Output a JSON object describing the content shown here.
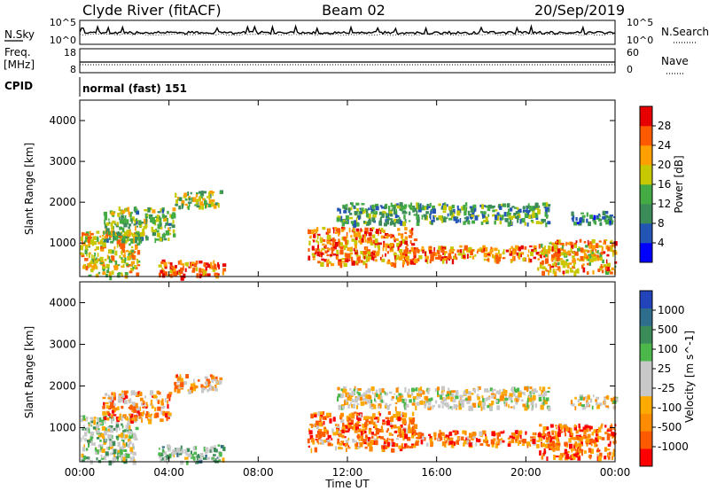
{
  "header": {
    "station": "Clyde River (fitACF)",
    "beam": "Beam 02",
    "date": "20/Sep/2019"
  },
  "panels": {
    "nsky": {
      "left_label": "N.Sky",
      "left_ticks": [
        "10^5",
        "10^0"
      ],
      "right_ticks": [
        "10^5",
        "10^0"
      ],
      "right_label": "N.Search"
    },
    "freq": {
      "left_label_1": "Freq.",
      "left_label_2": "[MHz]",
      "left_ticks": [
        "18",
        "8"
      ],
      "right_ticks": [
        "60",
        "0"
      ],
      "right_label": "Nave"
    },
    "cpid": {
      "label": "CPID",
      "text": "normal (fast) 151"
    }
  },
  "colors": {
    "power_scale": [
      "#0000ff",
      "#2255b4",
      "#3c8c5a",
      "#44aa44",
      "#c8c800",
      "#ffa000",
      "#ff5a00",
      "#e60000"
    ],
    "velocity_scale": [
      "#ff0000",
      "#ff5a00",
      "#ff8c00",
      "#ffaa00",
      "#c8c8c8",
      "#c8c8c8",
      "#4cb84c",
      "#3c8c5a",
      "#2e6e8c",
      "#2244bb"
    ]
  },
  "chart_data": [
    {
      "type": "heatmap",
      "title": "",
      "xlabel": "Time UT",
      "ylabel": "Slant Range [km]",
      "xlim": [
        "00:00",
        "24:00"
      ],
      "ylim": [
        180,
        4500
      ],
      "x_ticks": [
        "00:00",
        "04:00",
        "08:00",
        "12:00",
        "16:00",
        "20:00",
        "00:00"
      ],
      "y_ticks": [
        "1000",
        "2000",
        "3000",
        "4000"
      ],
      "colorbar": {
        "label": "Power [dB]",
        "ticks": [
          "4",
          "8",
          "12",
          "16",
          "20",
          "24",
          "28"
        ],
        "range": [
          0,
          32
        ]
      },
      "regions": [
        {
          "t0": 0.0,
          "t1": 2.6,
          "r0": 200,
          "r1": 1300,
          "level": 0.65
        },
        {
          "t0": 1.0,
          "t1": 4.2,
          "r0": 1100,
          "r1": 1900,
          "level": 0.45
        },
        {
          "t0": 3.5,
          "t1": 6.5,
          "r0": 200,
          "r1": 600,
          "level": 0.8
        },
        {
          "t0": 4.2,
          "t1": 6.3,
          "r0": 1900,
          "r1": 2300,
          "level": 0.5
        },
        {
          "t0": 10.2,
          "t1": 15.0,
          "r0": 500,
          "r1": 1400,
          "level": 0.8
        },
        {
          "t0": 11.5,
          "t1": 21.0,
          "r0": 1500,
          "r1": 2000,
          "level": 0.35
        },
        {
          "t0": 15.0,
          "t1": 21.5,
          "r0": 600,
          "r1": 950,
          "level": 0.75
        },
        {
          "t0": 20.5,
          "t1": 24.0,
          "r0": 300,
          "r1": 1100,
          "level": 0.7
        },
        {
          "t0": 22.0,
          "t1": 24.0,
          "r0": 1500,
          "r1": 1800,
          "level": 0.25
        }
      ]
    },
    {
      "type": "heatmap",
      "title": "",
      "xlabel": "Time UT",
      "ylabel": "Slant Range [km]",
      "xlim": [
        "00:00",
        "24:00"
      ],
      "ylim": [
        180,
        4500
      ],
      "x_ticks": [
        "00:00",
        "04:00",
        "08:00",
        "12:00",
        "16:00",
        "20:00",
        "00:00"
      ],
      "y_ticks": [
        "1000",
        "2000",
        "3000",
        "4000"
      ],
      "colorbar": {
        "label": "Velocity [m s^-1]",
        "ticks": [
          "1000",
          "500",
          "100",
          "25",
          "-25",
          "-100",
          "-500",
          "-1000"
        ],
        "range": [
          -1200,
          1200
        ]
      },
      "regions": [
        {
          "t0": 0.0,
          "t1": 2.5,
          "r0": 200,
          "r1": 1300,
          "level": 0.55
        },
        {
          "t0": 1.0,
          "t1": 4.0,
          "r0": 1200,
          "r1": 1900,
          "level": 0.25
        },
        {
          "t0": 3.5,
          "t1": 6.5,
          "r0": 200,
          "r1": 600,
          "level": 0.6
        },
        {
          "t0": 4.2,
          "t1": 6.3,
          "r0": 1900,
          "r1": 2300,
          "level": 0.3
        },
        {
          "t0": 10.2,
          "t1": 15.0,
          "r0": 500,
          "r1": 1400,
          "level": 0.2
        },
        {
          "t0": 11.5,
          "t1": 21.0,
          "r0": 1500,
          "r1": 2000,
          "level": 0.45
        },
        {
          "t0": 15.0,
          "t1": 21.5,
          "r0": 600,
          "r1": 950,
          "level": 0.2
        },
        {
          "t0": 20.5,
          "t1": 24.0,
          "r0": 300,
          "r1": 1100,
          "level": 0.15
        },
        {
          "t0": 22.0,
          "t1": 24.0,
          "r0": 1500,
          "r1": 1800,
          "level": 0.45
        }
      ]
    }
  ]
}
